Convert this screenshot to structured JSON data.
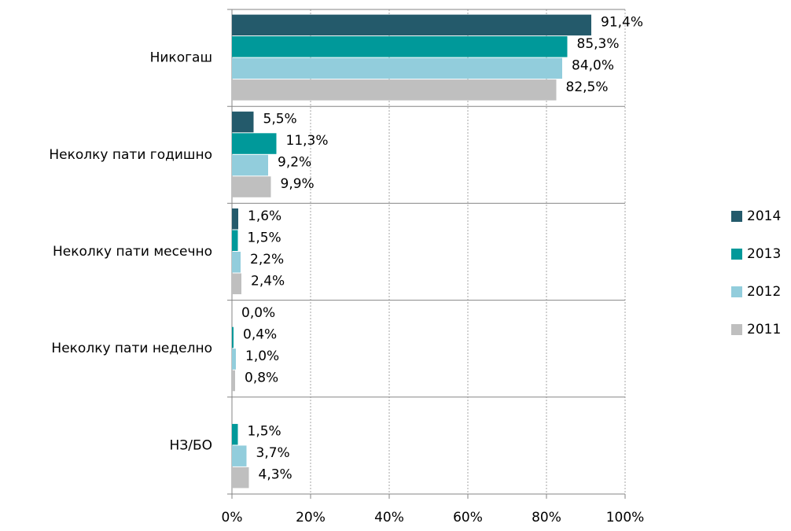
{
  "chart_data": {
    "type": "barh",
    "categories": [
      "Никогаш",
      "Неколку пати годишно",
      "Неколку пати месечно",
      "Неколку пати неделно",
      "НЗ/БО"
    ],
    "series": [
      {
        "name": "2014",
        "color": "#245a6b",
        "values": [
          91.4,
          5.5,
          1.6,
          0.0,
          null
        ],
        "value_labels": [
          "91,4%",
          "5,5%",
          "1,6%",
          "0,0%",
          null
        ]
      },
      {
        "name": "2013",
        "color": "#00999a",
        "values": [
          85.3,
          11.3,
          1.5,
          0.4,
          1.5
        ],
        "value_labels": [
          "85,3%",
          "11,3%",
          "1,5%",
          "0,4%",
          "1,5%"
        ]
      },
      {
        "name": "2012",
        "color": "#92cddc",
        "values": [
          84.0,
          9.2,
          2.2,
          1.0,
          3.7
        ],
        "value_labels": [
          "84,0%",
          "9,2%",
          "2,2%",
          "1,0%",
          "3,7%"
        ]
      },
      {
        "name": "2011",
        "color": "#bfbfbf",
        "values": [
          82.5,
          9.9,
          2.4,
          0.8,
          4.3
        ],
        "value_labels": [
          "82,5%",
          "9,9%",
          "2,4%",
          "0,8%",
          "4,3%"
        ]
      }
    ],
    "xlim": [
      0,
      100
    ],
    "xticks": [
      {
        "value": 0,
        "label": "0%"
      },
      {
        "value": 20,
        "label": "20%"
      },
      {
        "value": 40,
        "label": "40%"
      },
      {
        "value": 60,
        "label": "60%"
      },
      {
        "value": 80,
        "label": "80%"
      },
      {
        "value": 100,
        "label": "100%"
      }
    ],
    "grid": true,
    "legend": "right"
  }
}
